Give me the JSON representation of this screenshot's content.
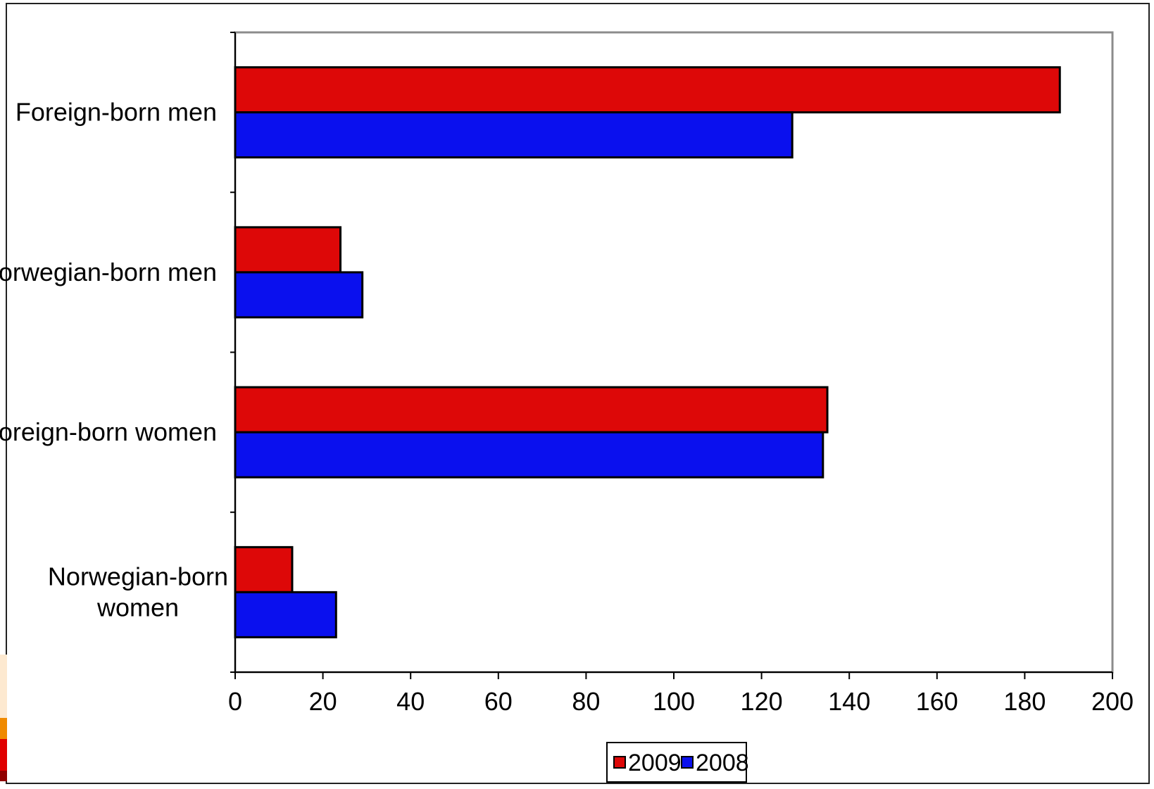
{
  "chart_data": {
    "type": "bar",
    "orientation": "horizontal",
    "categories": [
      "Foreign-born men",
      "Norwegian-born men",
      "Foreign-born women",
      "Norwegian-born women"
    ],
    "series": [
      {
        "name": "2009",
        "color": "#dd0808",
        "values": [
          188,
          24,
          135,
          13
        ]
      },
      {
        "name": "2008",
        "color": "#0a10ee",
        "values": [
          127,
          29,
          134,
          23
        ]
      }
    ],
    "xlim": [
      0,
      200
    ],
    "xticks": [
      "0",
      "20",
      "40",
      "60",
      "80",
      "100",
      "120",
      "140",
      "160",
      "180",
      "200"
    ],
    "xlabel": "",
    "ylabel": "",
    "title": "",
    "grid": false,
    "legend_position": "bottom-center"
  }
}
